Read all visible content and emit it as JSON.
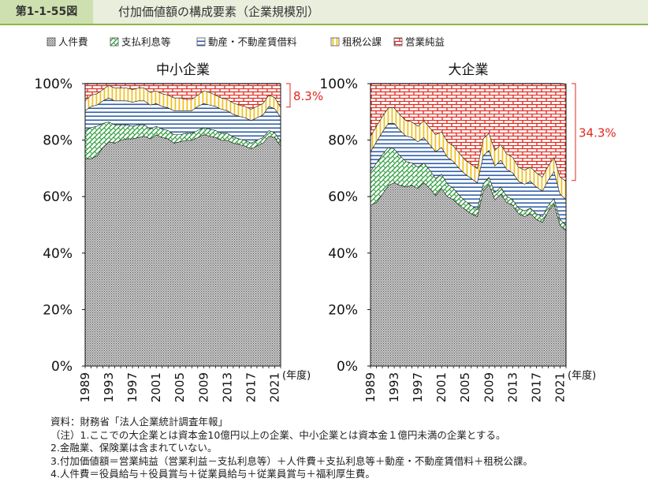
{
  "header": {
    "figure_id": "第1-1-55図",
    "title": "付加価値額の構成要素（企業規模別）"
  },
  "legend": [
    {
      "key": "labor",
      "label": "人件費"
    },
    {
      "key": "interest",
      "label": "支払利息等"
    },
    {
      "key": "rent",
      "label": "動産・不動産賃借料"
    },
    {
      "key": "tax",
      "label": "租税公課"
    },
    {
      "key": "profit",
      "label": "営業純益"
    }
  ],
  "notes": {
    "source": "資料：財務省「法人企業統計調査年報」",
    "note1": "（注）1.ここでの大企業とは資本金10億円以上の企業、中小企業とは資本金１億円未満の企業とする。",
    "note2": "2.金融業、保険業は含まれていない。",
    "note3": "3.付加価値額＝営業純益（営業利益－支払利息等）＋人件費＋支払利息等＋動産・不動産賃借料＋租税公課。",
    "note4": "4.人件費＝役員給与＋役員賞与＋従業員給与＋従業員賞与＋福利厚生費。"
  },
  "chart_data": [
    {
      "type": "area",
      "stacked": true,
      "title": "中小企業",
      "x_unit_label": "(年度)",
      "ylim": [
        0,
        100
      ],
      "y_ticks": [
        "0%",
        "20%",
        "40%",
        "60%",
        "80%",
        "100%"
      ],
      "x_tick_labels": [
        "1989",
        "1993",
        "1997",
        "2001",
        "2005",
        "2009",
        "2013",
        "2017",
        "2021"
      ],
      "x": [
        1989,
        1990,
        1991,
        1992,
        1993,
        1994,
        1995,
        1996,
        1997,
        1998,
        1999,
        2000,
        2001,
        2002,
        2003,
        2004,
        2005,
        2006,
        2007,
        2008,
        2009,
        2010,
        2011,
        2012,
        2013,
        2014,
        2015,
        2016,
        2017,
        2018,
        2019,
        2020,
        2021,
        2022
      ],
      "annotation": {
        "label": "8.3%",
        "series": "profit",
        "year": 2022
      },
      "series": [
        {
          "key": "labor",
          "name": "人件費",
          "values": [
            73.5,
            73.5,
            74.5,
            77.5,
            79.5,
            79,
            80,
            80.5,
            80.5,
            81,
            81.5,
            80.5,
            82,
            81,
            80.5,
            79,
            79.5,
            80,
            80,
            81,
            82,
            81.5,
            81,
            80,
            80,
            79,
            78.5,
            78,
            77,
            78,
            79,
            81.5,
            81,
            78
          ]
        },
        {
          "key": "interest",
          "name": "支払利息等",
          "values": [
            10,
            11,
            10.5,
            8.5,
            7,
            6.5,
            5.5,
            5,
            4.5,
            4.5,
            4,
            3.5,
            3,
            3,
            3,
            3,
            2.5,
            2.5,
            2.5,
            2.5,
            2.5,
            2.5,
            2.5,
            2.5,
            2.5,
            2.2,
            2,
            2,
            2,
            2,
            2,
            2,
            1.7,
            1.7
          ]
        },
        {
          "key": "rent",
          "name": "動産・不動産賃借料",
          "values": [
            7,
            7.5,
            7.5,
            8,
            8.5,
            8.5,
            8.5,
            8.5,
            8.5,
            8.5,
            8.5,
            8.5,
            8,
            8,
            8,
            8.5,
            8.5,
            8,
            8,
            8.5,
            8.5,
            8.5,
            8.5,
            8.5,
            8,
            8,
            8,
            8,
            8,
            8,
            8,
            8.5,
            8.5,
            8.5
          ]
        },
        {
          "key": "tax",
          "name": "租税公課",
          "values": [
            3.5,
            4,
            4,
            4,
            4.5,
            4.5,
            4.5,
            4.5,
            4.5,
            4.5,
            4.5,
            4.5,
            4.5,
            4.5,
            4.5,
            4.5,
            4.5,
            4,
            4,
            4,
            4.5,
            4.5,
            4,
            4,
            4,
            4,
            4,
            4,
            4,
            4,
            4,
            4,
            4,
            3.5
          ]
        },
        {
          "key": "profit",
          "name": "営業純益",
          "values": [
            6,
            4,
            3.5,
            2,
            0.5,
            1.5,
            1.5,
            1.5,
            2,
            1.5,
            1.5,
            3,
            2.5,
            3.5,
            4,
            5,
            5,
            5.5,
            5.5,
            4,
            2.5,
            3,
            4,
            5,
            5.5,
            6.8,
            7.5,
            8,
            9,
            8,
            7,
            4,
            4.8,
            8.3
          ]
        }
      ]
    },
    {
      "type": "area",
      "stacked": true,
      "title": "大企業",
      "x_unit_label": "(年度)",
      "ylim": [
        0,
        100
      ],
      "y_ticks": [
        "0%",
        "20%",
        "40%",
        "60%",
        "80%",
        "100%"
      ],
      "x_tick_labels": [
        "1989",
        "1993",
        "1997",
        "2001",
        "2005",
        "2009",
        "2013",
        "2017",
        "2021"
      ],
      "x": [
        1989,
        1990,
        1991,
        1992,
        1993,
        1994,
        1995,
        1996,
        1997,
        1998,
        1999,
        2000,
        2001,
        2002,
        2003,
        2004,
        2005,
        2006,
        2007,
        2008,
        2009,
        2010,
        2011,
        2012,
        2013,
        2014,
        2015,
        2016,
        2017,
        2018,
        2019,
        2020,
        2021,
        2022
      ],
      "annotation": {
        "label": "34.3%",
        "series": "profit",
        "year": 2022
      },
      "series": [
        {
          "key": "labor",
          "name": "人件費",
          "values": [
            57,
            58,
            61,
            64,
            65,
            64,
            63.5,
            64,
            63,
            65,
            63,
            60.5,
            63,
            60,
            59,
            57,
            55.5,
            54,
            53,
            62,
            64.5,
            59,
            61,
            58,
            57,
            54,
            53,
            54,
            52,
            51,
            55,
            57.5,
            50,
            48
          ]
        },
        {
          "key": "interest",
          "name": "支払利息等",
          "values": [
            12,
            14,
            14,
            13.5,
            12,
            10.5,
            9,
            8,
            7.5,
            7,
            6.5,
            6,
            5,
            4.5,
            4,
            3.5,
            3,
            3,
            2.5,
            2.5,
            2.5,
            2.5,
            2.5,
            2.2,
            2,
            2,
            2,
            2,
            2,
            2,
            2,
            2,
            2,
            2
          ]
        },
        {
          "key": "rent",
          "name": "動産・不動産賃借料",
          "values": [
            7,
            7.5,
            8,
            8.5,
            9,
            9,
            9,
            9,
            9,
            9,
            9,
            9.5,
            9.5,
            9.5,
            9.5,
            9.5,
            9.5,
            9.5,
            9.5,
            10,
            9.5,
            9.5,
            9.5,
            9.5,
            9.5,
            9.5,
            9.5,
            9.5,
            9.5,
            9,
            9,
            9.5,
            9,
            9
          ]
        },
        {
          "key": "tax",
          "name": "租税公課",
          "values": [
            5.5,
            5.5,
            5.5,
            5.5,
            5.5,
            5.5,
            5.5,
            5.5,
            5.5,
            6,
            6,
            6,
            5.5,
            5.5,
            5.5,
            5.5,
            5,
            5,
            5,
            6,
            6,
            5.5,
            5.5,
            5.5,
            5.5,
            5,
            5,
            5,
            5,
            5,
            5,
            5,
            6,
            6.5
          ]
        },
        {
          "key": "profit",
          "name": "営業純益",
          "values": [
            18.5,
            15,
            11.5,
            8.5,
            8.5,
            11,
            13,
            13.5,
            15,
            13,
            15.5,
            18,
            17,
            20.5,
            22,
            24.5,
            27,
            28.5,
            30,
            19.5,
            17.5,
            23.5,
            21.5,
            24.8,
            26,
            29.5,
            30.5,
            29.5,
            31.5,
            33,
            29,
            26,
            33,
            34.3
          ]
        }
      ]
    }
  ],
  "colors": {
    "labor": "#7a7a7a",
    "interest": "#2a9d3a",
    "rent": "#2f5ea8",
    "tax": "#f0c020",
    "profit": "#e0281e",
    "annotation": "#e0281e"
  }
}
